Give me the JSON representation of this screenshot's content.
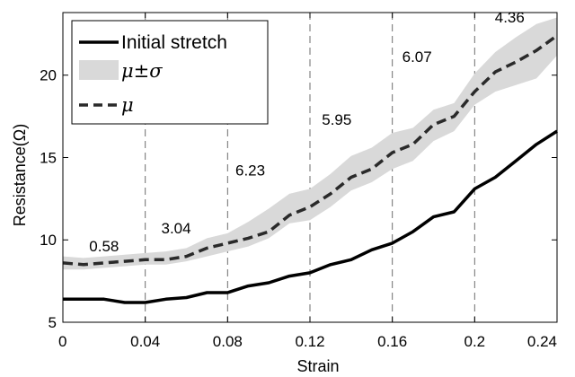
{
  "chart_data": {
    "type": "line",
    "xlabel": "Strain",
    "ylabel": "Resistance(Ω)",
    "xlim": [
      0,
      0.24
    ],
    "ylim": [
      5,
      23.8
    ],
    "xticks": [
      0,
      0.04,
      0.08,
      0.12,
      0.16,
      0.2,
      0.24
    ],
    "xtick_labels": [
      "0",
      "0.04",
      "0.08",
      "0.12",
      "0.16",
      "0.2",
      "0.24"
    ],
    "yticks": [
      5,
      10,
      15,
      20
    ],
    "ytick_labels": [
      "5",
      "10",
      "15",
      "20"
    ],
    "grid": "dashed vertical lines at x = 0.04, 0.08, 0.12, 0.16, 0.2",
    "legend_position": "top-left",
    "x": [
      0,
      0.01,
      0.02,
      0.03,
      0.04,
      0.05,
      0.06,
      0.07,
      0.08,
      0.09,
      0.1,
      0.11,
      0.12,
      0.13,
      0.14,
      0.15,
      0.16,
      0.17,
      0.18,
      0.19,
      0.2,
      0.21,
      0.22,
      0.23,
      0.24
    ],
    "series": [
      {
        "name": "Initial stretch",
        "style": "solid",
        "color": "#000000",
        "values": [
          6.4,
          6.4,
          6.4,
          6.2,
          6.2,
          6.4,
          6.5,
          6.8,
          6.8,
          7.2,
          7.4,
          7.8,
          8.0,
          8.5,
          8.8,
          9.4,
          9.8,
          10.5,
          11.4,
          11.7,
          13.1,
          13.8,
          14.8,
          15.8,
          16.6
        ]
      },
      {
        "name": "μ",
        "style": "dashed",
        "color": "#2a2a2a",
        "values": [
          8.6,
          8.5,
          8.6,
          8.7,
          8.8,
          8.8,
          9.0,
          9.5,
          9.8,
          10.1,
          10.5,
          11.5,
          12.0,
          12.8,
          13.8,
          14.3,
          15.3,
          15.8,
          17.0,
          17.5,
          19.0,
          20.2,
          20.8,
          21.5,
          22.4
        ]
      },
      {
        "name": "μ±σ",
        "style": "band",
        "color": "#d9d9d9",
        "lower": [
          8.2,
          8.2,
          8.3,
          8.4,
          8.5,
          8.5,
          8.7,
          9.0,
          9.3,
          9.6,
          10.1,
          11.0,
          11.2,
          12.0,
          13.0,
          13.5,
          14.3,
          14.8,
          16.0,
          16.6,
          18.2,
          19.0,
          19.4,
          19.8,
          21.2
        ],
        "upper": [
          9.0,
          8.9,
          9.0,
          9.1,
          9.2,
          9.3,
          9.5,
          10.1,
          10.4,
          11.1,
          11.9,
          12.8,
          13.1,
          14.0,
          15.1,
          15.6,
          16.5,
          16.8,
          17.9,
          18.3,
          20.1,
          21.4,
          22.3,
          23.1,
          23.5
        ]
      }
    ],
    "annotations": [
      {
        "text": "0.58",
        "x": 0.02,
        "y": 9.3
      },
      {
        "text": "3.04",
        "x": 0.055,
        "y": 10.4
      },
      {
        "text": "6.23",
        "x": 0.091,
        "y": 13.9
      },
      {
        "text": "5.95",
        "x": 0.133,
        "y": 17.0
      },
      {
        "text": "6.07",
        "x": 0.172,
        "y": 20.8
      },
      {
        "text": "4.36",
        "x": 0.217,
        "y": 23.2
      }
    ]
  }
}
